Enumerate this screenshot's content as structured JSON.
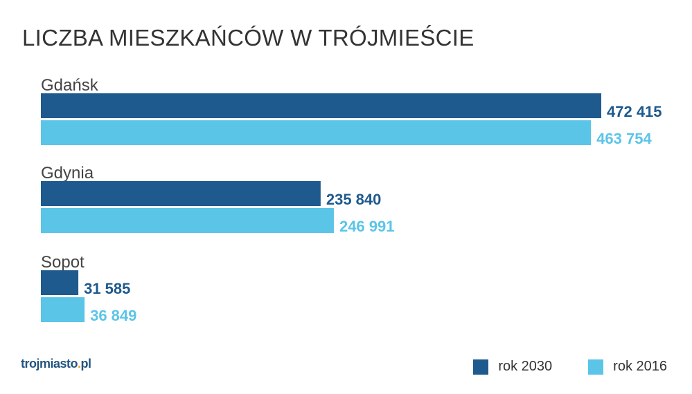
{
  "chart_data": {
    "type": "bar",
    "orientation": "horizontal",
    "title": "LICZBA MIESZKAŃCÓW W TRÓJMIEŚCIE",
    "categories": [
      "Gdańsk",
      "Gdynia",
      "Sopot"
    ],
    "series": [
      {
        "name": "rok 2030",
        "color": "#1e5a8e",
        "values": [
          472415,
          235840,
          31585
        ],
        "labels": [
          "472 415",
          "235 840",
          "31 585"
        ]
      },
      {
        "name": "rok 2016",
        "color": "#5bc5e8",
        "values": [
          463754,
          246991,
          36849
        ],
        "labels": [
          "463 754",
          "246 991",
          "36 849"
        ]
      }
    ],
    "xlim": [
      0,
      472415
    ],
    "grid": false,
    "legend_position": "bottom-right"
  },
  "logo": {
    "text_main": "trojmiasto",
    "text_dot": ".",
    "text_tld": "pl"
  }
}
